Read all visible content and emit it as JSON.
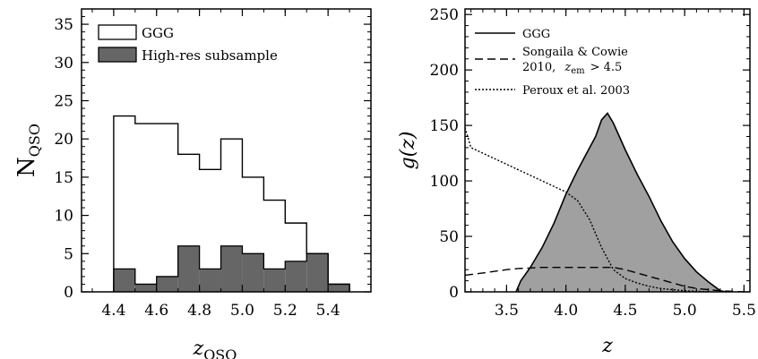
{
  "chart_data": [
    {
      "type": "bar",
      "xlabel_main": "z",
      "xlabel_sub": "QSO",
      "ylabel_main": "N",
      "ylabel_sub": "QSO",
      "xlim": [
        4.25,
        5.6
      ],
      "ylim": [
        0,
        37
      ],
      "xticks": [
        "4.4",
        "4.6",
        "4.8",
        "5.0",
        "5.2",
        "5.4"
      ],
      "yticks": [
        "0",
        "5",
        "10",
        "15",
        "20",
        "25",
        "30",
        "35"
      ],
      "bin_edges": [
        4.4,
        4.5,
        4.6,
        4.7,
        4.8,
        4.9,
        5.0,
        5.1,
        5.2,
        5.3,
        5.4,
        5.5
      ],
      "series": [
        {
          "name": "GGG",
          "values": [
            23,
            22,
            22,
            18,
            16,
            20,
            15,
            12,
            9,
            5,
            1
          ],
          "fill": "#ffffff"
        },
        {
          "name": "High-res subsample",
          "values": [
            3,
            1,
            2,
            6,
            3,
            6,
            5,
            3,
            4,
            5,
            1
          ],
          "fill": "#666666"
        }
      ],
      "legend": "top-left"
    },
    {
      "type": "line",
      "xlabel": "z",
      "ylabel": "g(z)",
      "xlim": [
        3.15,
        5.55
      ],
      "ylim": [
        0,
        255
      ],
      "xticks": [
        "3.5",
        "4.0",
        "4.5",
        "5.0",
        "5.5"
      ],
      "yticks": [
        "0",
        "50",
        "100",
        "150",
        "200",
        "250"
      ],
      "series": [
        {
          "name": "GGG",
          "style": "solid",
          "fill": "#a0a0a0",
          "x": [
            3.58,
            3.62,
            3.7,
            3.8,
            3.9,
            4.0,
            4.1,
            4.2,
            4.25,
            4.3,
            4.35,
            4.4,
            4.5,
            4.6,
            4.7,
            4.8,
            4.9,
            5.0,
            5.1,
            5.2,
            5.25,
            5.3,
            5.35
          ],
          "y": [
            0,
            10,
            22,
            40,
            62,
            88,
            110,
            130,
            140,
            155,
            161,
            152,
            128,
            106,
            86,
            64,
            45,
            30,
            18,
            9,
            5,
            1,
            0
          ]
        },
        {
          "name_line1": "Songaila & Cowie",
          "name_line2_prefix": "2010,",
          "name_line2_z": "z",
          "name_line2_sub": "em",
          "name_line2_suffix": "> 4.5",
          "style": "dashed",
          "x": [
            3.15,
            3.3,
            3.5,
            3.6,
            3.8,
            4.0,
            4.2,
            4.4,
            4.5,
            4.6,
            4.7,
            4.8,
            4.9,
            5.0,
            5.1,
            5.2,
            5.3,
            5.4,
            5.5
          ],
          "y": [
            15,
            17,
            20,
            21,
            22,
            22,
            22,
            22,
            20,
            17,
            14,
            11,
            8,
            5,
            3,
            2,
            1,
            0.5,
            0
          ]
        },
        {
          "name": "Peroux et al. 2003",
          "style": "dotted",
          "x": [
            3.15,
            3.2,
            3.3,
            3.4,
            3.5,
            3.6,
            3.7,
            3.8,
            3.9,
            4.0,
            4.1,
            4.2,
            4.3,
            4.4,
            4.5,
            4.6,
            4.7,
            4.8,
            4.9,
            5.0,
            5.1,
            5.2
          ],
          "y": [
            148,
            130,
            125,
            120,
            115,
            110,
            105,
            100,
            95,
            90,
            82,
            65,
            40,
            20,
            12,
            8,
            5,
            3,
            2,
            1,
            0.5,
            0
          ]
        }
      ],
      "legend": "top-left"
    }
  ]
}
